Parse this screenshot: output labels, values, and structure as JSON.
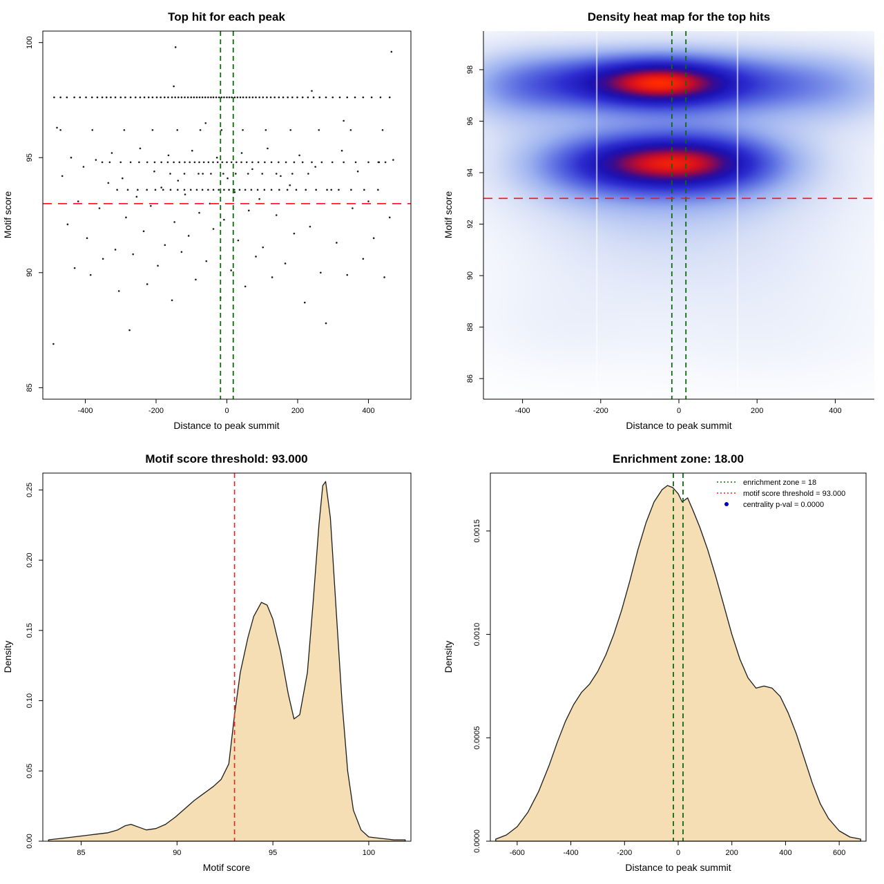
{
  "figure": {
    "background": "#ffffff",
    "accent_red": "#ff1a1a",
    "accent_green": "#0b6b0b",
    "fill_wheat": "#f5deb3",
    "point_color": "#1a1a1a"
  },
  "chart_data": [
    {
      "type": "scatter",
      "title": "Top hit for each peak",
      "xlabel": "Distance to peak summit",
      "ylabel": "Motif score",
      "xlim": [
        -520,
        520
      ],
      "ylim": [
        84.5,
        100.5
      ],
      "xticks": [
        -400,
        -200,
        0,
        200,
        400
      ],
      "yticks": [
        85,
        90,
        95,
        100
      ],
      "box": true,
      "threshold_line": {
        "y": 93,
        "color": "#ff1a1a"
      },
      "enrichment_zone": {
        "x": [
          -18,
          18
        ],
        "color": "#0b6b0b"
      },
      "bands": [
        {
          "y": 97.62,
          "x": [
            -488,
            -470,
            -452,
            -431,
            -415,
            -398,
            -381,
            -366,
            -352,
            -340,
            -328,
            -315,
            -300,
            -287,
            -272,
            -258,
            -245,
            -233,
            -221,
            -210,
            -198,
            -187,
            -176,
            -166,
            -155,
            -146,
            -137,
            -128,
            -119,
            -110,
            -101,
            -93,
            -85,
            -77,
            -69,
            -61,
            -53,
            -45,
            -38,
            -30,
            -22,
            -15,
            -8,
            0,
            7,
            14,
            22,
            30,
            38,
            46,
            55,
            64,
            73,
            82,
            92,
            102,
            113,
            124,
            135,
            147,
            159,
            172,
            185,
            199,
            214,
            229,
            245,
            262,
            280,
            299,
            319,
            340,
            362,
            385,
            409,
            434,
            460
          ]
        },
        {
          "y": 94.8,
          "x": [
            -352,
            -331,
            -300,
            -272,
            -248,
            -225,
            -204,
            -185,
            -167,
            -150,
            -134,
            -119,
            -105,
            -91,
            -78,
            -65,
            -52,
            -39,
            -26,
            -13,
            0,
            13,
            27,
            41,
            56,
            72,
            89,
            107,
            126,
            146,
            167,
            190,
            214,
            240,
            268,
            298,
            330,
            364,
            400,
            428,
            448
          ]
        },
        {
          "y": 93.6,
          "x": [
            -310,
            -280,
            -252,
            -226,
            -202,
            -180,
            -159,
            -139,
            -120,
            -102,
            -85,
            -69,
            -53,
            -38,
            -23,
            -8,
            6,
            21,
            36,
            52,
            69,
            87,
            106,
            126,
            148,
            171,
            196,
            223,
            252,
            283,
            316,
            351,
            388,
            427
          ]
        },
        {
          "y": 96.2,
          "x": [
            -470,
            -380,
            -290,
            -210,
            -140,
            -75,
            -15,
            45,
            110,
            180,
            260,
            350,
            440
          ]
        },
        {
          "y": 94.3,
          "x": [
            -160,
            -120,
            -80,
            -45,
            -10,
            25,
            60,
            100,
            140,
            185,
            230
          ]
        }
      ],
      "points": [
        [
          -480,
          96.3
        ],
        [
          -465,
          94.2
        ],
        [
          -450,
          92.1
        ],
        [
          -440,
          95.0
        ],
        [
          -430,
          90.2
        ],
        [
          -420,
          93.1
        ],
        [
          -405,
          94.6
        ],
        [
          -395,
          91.5
        ],
        [
          -385,
          89.9
        ],
        [
          -370,
          94.9
        ],
        [
          -360,
          92.8
        ],
        [
          -350,
          90.6
        ],
        [
          -335,
          93.9
        ],
        [
          -325,
          95.2
        ],
        [
          -315,
          91.0
        ],
        [
          -305,
          89.2
        ],
        [
          -295,
          94.1
        ],
        [
          -285,
          92.4
        ],
        [
          -275,
          87.5
        ],
        [
          -265,
          90.8
        ],
        [
          -255,
          93.3
        ],
        [
          -245,
          95.4
        ],
        [
          -235,
          91.8
        ],
        [
          -225,
          89.5
        ],
        [
          -215,
          92.9
        ],
        [
          -205,
          94.4
        ],
        [
          -195,
          90.3
        ],
        [
          -185,
          93.7
        ],
        [
          -175,
          91.2
        ],
        [
          -165,
          95.1
        ],
        [
          -155,
          88.8
        ],
        [
          -148,
          92.2
        ],
        [
          -138,
          94.0
        ],
        [
          -128,
          90.9
        ],
        [
          -118,
          93.4
        ],
        [
          -108,
          91.6
        ],
        [
          -98,
          95.3
        ],
        [
          -88,
          89.7
        ],
        [
          -78,
          92.6
        ],
        [
          -68,
          94.3
        ],
        [
          -58,
          90.5
        ],
        [
          -48,
          93.0
        ],
        [
          -38,
          91.9
        ],
        [
          -28,
          95.0
        ],
        [
          -18,
          88.9
        ],
        [
          -8,
          92.3
        ],
        [
          2,
          94.1
        ],
        [
          12,
          90.1
        ],
        [
          22,
          93.5
        ],
        [
          32,
          91.4
        ],
        [
          42,
          95.2
        ],
        [
          52,
          89.4
        ],
        [
          62,
          92.7
        ],
        [
          72,
          94.5
        ],
        [
          82,
          90.7
        ],
        [
          92,
          93.2
        ],
        [
          102,
          91.1
        ],
        [
          115,
          95.4
        ],
        [
          128,
          89.8
        ],
        [
          140,
          92.5
        ],
        [
          152,
          94.2
        ],
        [
          165,
          90.4
        ],
        [
          178,
          93.8
        ],
        [
          190,
          91.7
        ],
        [
          205,
          95.1
        ],
        [
          220,
          88.7
        ],
        [
          235,
          92.0
        ],
        [
          250,
          94.6
        ],
        [
          265,
          90.0
        ],
        [
          280,
          87.8
        ],
        [
          295,
          93.6
        ],
        [
          310,
          91.3
        ],
        [
          325,
          95.3
        ],
        [
          340,
          89.9
        ],
        [
          355,
          92.8
        ],
        [
          370,
          94.4
        ],
        [
          385,
          90.6
        ],
        [
          400,
          93.1
        ],
        [
          415,
          91.5
        ],
        [
          430,
          94.8
        ],
        [
          445,
          89.8
        ],
        [
          460,
          92.4
        ],
        [
          470,
          94.9
        ],
        [
          -145,
          99.8
        ],
        [
          465,
          99.6
        ],
        [
          -490,
          86.9
        ],
        [
          240,
          97.9
        ],
        [
          -150,
          98.1
        ],
        [
          330,
          96.6
        ],
        [
          -60,
          96.5
        ]
      ]
    },
    {
      "type": "heatmap",
      "title": "Density heat map for the top hits",
      "xlabel": "Distance to peak summit",
      "ylabel": "Motif score",
      "xlim": [
        -500,
        500
      ],
      "ylim": [
        85.2,
        99.5
      ],
      "xticks": [
        -400,
        -200,
        0,
        200,
        400
      ],
      "yticks": [
        86,
        88,
        90,
        92,
        94,
        96,
        98
      ],
      "box": false,
      "threshold_line": {
        "y": 93,
        "color": "#ff1a1a"
      },
      "enrichment_zone": {
        "x": [
          -18,
          18
        ],
        "color": "#0b6b0b"
      },
      "white_lines": [
        -210,
        150
      ],
      "colormap": [
        [
          0.0,
          "#ffffff"
        ],
        [
          0.05,
          "#f2f5fc"
        ],
        [
          0.15,
          "#d5def6"
        ],
        [
          0.3,
          "#9bb0ef"
        ],
        [
          0.45,
          "#5b6ee2"
        ],
        [
          0.6,
          "#2e2ed0"
        ],
        [
          0.72,
          "#1b12b4"
        ],
        [
          0.8,
          "#3c0b8e"
        ],
        [
          0.87,
          "#8f0a4e"
        ],
        [
          0.93,
          "#d40f1f"
        ],
        [
          1.0,
          "#ff2a00"
        ]
      ],
      "blobs": [
        {
          "x": -50,
          "y": 97.5,
          "sx": 130,
          "sy": 0.7,
          "w": 1.0
        },
        {
          "x": -280,
          "y": 97.5,
          "sx": 150,
          "sy": 0.85,
          "w": 0.5
        },
        {
          "x": 180,
          "y": 97.45,
          "sx": 170,
          "sy": 0.85,
          "w": 0.48
        },
        {
          "x": 0,
          "y": 97.4,
          "sx": 380,
          "sy": 1.5,
          "w": 0.3
        },
        {
          "x": -440,
          "y": 97.2,
          "sx": 110,
          "sy": 1.1,
          "w": 0.22
        },
        {
          "x": 430,
          "y": 97.3,
          "sx": 120,
          "sy": 1.1,
          "w": 0.2
        },
        {
          "x": -50,
          "y": 94.4,
          "sx": 160,
          "sy": 0.8,
          "w": 0.95
        },
        {
          "x": 120,
          "y": 94.4,
          "sx": 140,
          "sy": 0.85,
          "w": 0.45
        },
        {
          "x": -260,
          "y": 94.3,
          "sx": 140,
          "sy": 0.95,
          "w": 0.3
        },
        {
          "x": 0,
          "y": 94.1,
          "sx": 330,
          "sy": 1.5,
          "w": 0.22
        },
        {
          "x": -20,
          "y": 93.0,
          "sx": 260,
          "sy": 1.1,
          "w": 0.15
        },
        {
          "x": -150,
          "y": 91.3,
          "sx": 220,
          "sy": 1.4,
          "w": 0.1
        },
        {
          "x": 180,
          "y": 90.8,
          "sx": 240,
          "sy": 1.5,
          "w": 0.09
        },
        {
          "x": -320,
          "y": 88.0,
          "sx": 160,
          "sy": 1.3,
          "w": 0.07
        },
        {
          "x": 230,
          "y": 87.5,
          "sx": 260,
          "sy": 1.4,
          "w": 0.07
        },
        {
          "x": 0,
          "y": 89.8,
          "sx": 420,
          "sy": 2.2,
          "w": 0.06
        }
      ]
    },
    {
      "type": "area",
      "title": "Motif score threshold: 93.000",
      "xlabel": "Motif score",
      "ylabel": "Density",
      "xlim": [
        83,
        102.2
      ],
      "ylim": [
        0,
        0.262
      ],
      "xticks": [
        85,
        90,
        95,
        100
      ],
      "yticks": [
        0,
        0.05,
        0.1,
        0.15,
        0.2,
        0.25
      ],
      "ytick_labels": [
        "0.00",
        "0.05",
        "0.10",
        "0.15",
        "0.20",
        "0.25"
      ],
      "box": true,
      "fill": "#f5deb3",
      "vline": {
        "x": 93,
        "color": "#ff1a1a"
      },
      "curve": [
        [
          83.3,
          0.001
        ],
        [
          84,
          0.002
        ],
        [
          84.6,
          0.003
        ],
        [
          85.2,
          0.004
        ],
        [
          85.8,
          0.005
        ],
        [
          86.4,
          0.006
        ],
        [
          86.9,
          0.008
        ],
        [
          87.3,
          0.011
        ],
        [
          87.6,
          0.012
        ],
        [
          88,
          0.01
        ],
        [
          88.4,
          0.008
        ],
        [
          88.9,
          0.009
        ],
        [
          89.4,
          0.012
        ],
        [
          89.9,
          0.017
        ],
        [
          90.4,
          0.023
        ],
        [
          90.9,
          0.029
        ],
        [
          91.4,
          0.034
        ],
        [
          91.9,
          0.039
        ],
        [
          92.3,
          0.044
        ],
        [
          92.7,
          0.055
        ],
        [
          93,
          0.09
        ],
        [
          93.3,
          0.12
        ],
        [
          93.7,
          0.145
        ],
        [
          94,
          0.16
        ],
        [
          94.4,
          0.17
        ],
        [
          94.7,
          0.168
        ],
        [
          95,
          0.158
        ],
        [
          95.4,
          0.135
        ],
        [
          95.8,
          0.105
        ],
        [
          96.1,
          0.087
        ],
        [
          96.4,
          0.09
        ],
        [
          96.8,
          0.12
        ],
        [
          97.1,
          0.17
        ],
        [
          97.4,
          0.225
        ],
        [
          97.6,
          0.253
        ],
        [
          97.75,
          0.256
        ],
        [
          98,
          0.23
        ],
        [
          98.3,
          0.165
        ],
        [
          98.6,
          0.1
        ],
        [
          98.9,
          0.05
        ],
        [
          99.2,
          0.022
        ],
        [
          99.6,
          0.008
        ],
        [
          100,
          0.003
        ],
        [
          100.6,
          0.002
        ],
        [
          101.3,
          0.001
        ],
        [
          101.9,
          0.001
        ]
      ]
    },
    {
      "type": "area",
      "title": "Enrichment zone: 18.00",
      "xlabel": "Distance to peak summit",
      "ylabel": "Density",
      "xlim": [
        -700,
        700
      ],
      "ylim": [
        0,
        0.00178
      ],
      "xticks": [
        -600,
        -400,
        -200,
        0,
        200,
        400,
        600
      ],
      "yticks": [
        0,
        0.0005,
        0.001,
        0.0015
      ],
      "ytick_labels": [
        "0.0000",
        "0.0005",
        "0.0010",
        "0.0015"
      ],
      "box": true,
      "fill": "#f5deb3",
      "enrichment_zone": {
        "x": [
          -18,
          18
        ],
        "color": "#0b6b0b"
      },
      "curve": [
        [
          -680,
          1e-05
        ],
        [
          -640,
          3e-05
        ],
        [
          -600,
          7e-05
        ],
        [
          -560,
          0.00014
        ],
        [
          -520,
          0.00024
        ],
        [
          -480,
          0.00037
        ],
        [
          -450,
          0.00048
        ],
        [
          -420,
          0.00058
        ],
        [
          -390,
          0.00066
        ],
        [
          -360,
          0.00072
        ],
        [
          -330,
          0.00076
        ],
        [
          -300,
          0.00082
        ],
        [
          -270,
          0.0009
        ],
        [
          -240,
          0.001
        ],
        [
          -210,
          0.00112
        ],
        [
          -180,
          0.00126
        ],
        [
          -150,
          0.00141
        ],
        [
          -120,
          0.00154
        ],
        [
          -90,
          0.00164
        ],
        [
          -60,
          0.0017
        ],
        [
          -40,
          0.00172
        ],
        [
          -20,
          0.00171
        ],
        [
          0,
          0.00168
        ],
        [
          15,
          0.00164
        ],
        [
          35,
          0.00166
        ],
        [
          55,
          0.0016
        ],
        [
          80,
          0.00152
        ],
        [
          110,
          0.00141
        ],
        [
          140,
          0.00128
        ],
        [
          170,
          0.00114
        ],
        [
          200,
          0.001
        ],
        [
          230,
          0.00088
        ],
        [
          260,
          0.00079
        ],
        [
          290,
          0.00074
        ],
        [
          320,
          0.00075
        ],
        [
          350,
          0.00074
        ],
        [
          380,
          0.0007
        ],
        [
          410,
          0.00062
        ],
        [
          440,
          0.00052
        ],
        [
          470,
          0.0004
        ],
        [
          500,
          0.00028
        ],
        [
          530,
          0.00018
        ],
        [
          560,
          0.00011
        ],
        [
          600,
          5e-05
        ],
        [
          640,
          2e-05
        ],
        [
          680,
          1e-05
        ]
      ],
      "legend": {
        "items": [
          {
            "marker": "dotted-line",
            "color": "#0b6b0b",
            "label": "enrichment zone = 18"
          },
          {
            "marker": "dotted-line",
            "color": "#ff1a1a",
            "label": "motif score threshold = 93.000"
          },
          {
            "marker": "dot",
            "color": "#0000b8",
            "label": "centrality p-val = 0.0000"
          }
        ]
      }
    }
  ]
}
